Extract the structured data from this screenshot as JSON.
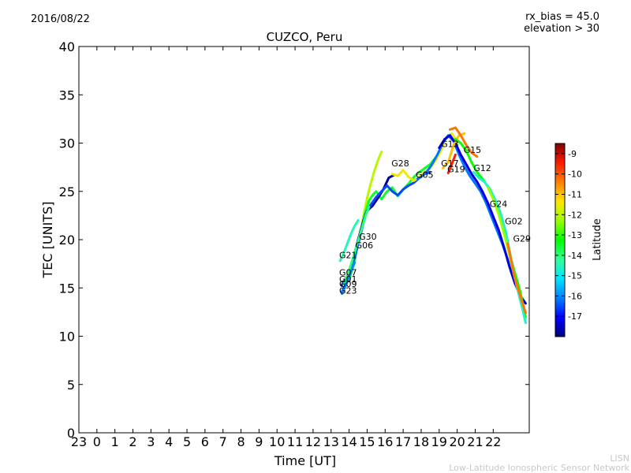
{
  "header": {
    "date": "2016/08/22",
    "rx_bias": "rx_bias = 45.0",
    "elevation": "elevation > 30"
  },
  "footer": {
    "line1": "LISN",
    "line2": "Low-Latitude Ionospheric Sensor Network"
  },
  "chart_data": {
    "type": "line",
    "title": "CUZCO, Peru",
    "xlabel": "Time [UT]",
    "ylabel": "TEC [UNITS]",
    "xticks": [
      "23",
      "0",
      "1",
      "2",
      "3",
      "4",
      "5",
      "6",
      "7",
      "8",
      "9",
      "10",
      "11",
      "12",
      "13",
      "14",
      "15",
      "16",
      "17",
      "18",
      "19",
      "20",
      "21",
      "22"
    ],
    "xlim": [
      -1,
      24
    ],
    "yticks": [
      0,
      5,
      10,
      15,
      20,
      25,
      30,
      35,
      40
    ],
    "ylim": [
      0,
      40
    ],
    "colorbar": {
      "label": "Latitude",
      "ticks": [
        -9,
        -10,
        -11,
        -12,
        -13,
        -14,
        -15,
        -16,
        -17
      ],
      "range": [
        -18,
        -8.5
      ],
      "colors": [
        "#00007f",
        "#0000ff",
        "#0080ff",
        "#00e5ff",
        "#33ff99",
        "#00ff00",
        "#99ff00",
        "#ffe500",
        "#ff8000",
        "#ff1a00",
        "#800000"
      ]
    },
    "series": [
      {
        "name": "G21",
        "lat": -14.5,
        "x": [
          13.5,
          13.7,
          13.9,
          14.1,
          14.3,
          14.5
        ],
        "y": [
          17.8,
          18.6,
          19.6,
          20.6,
          21.4,
          22.0
        ]
      },
      {
        "name": "G30",
        "lat": -12.0,
        "x": [
          14.6,
          14.8,
          15.0,
          15.2,
          15.4,
          15.6,
          15.8
        ],
        "y": [
          20.2,
          22.5,
          24.3,
          25.8,
          27.1,
          28.2,
          29.1
        ]
      },
      {
        "name": "G06",
        "lat": -13.5,
        "x": [
          14.0,
          14.3,
          14.6,
          14.9,
          15.1,
          15.3,
          15.5,
          15.8,
          16.1,
          16.4,
          16.7,
          17.0,
          17.3,
          17.6,
          17.9,
          18.2,
          18.5,
          18.8
        ],
        "y": [
          15.8,
          17.8,
          20.6,
          22.8,
          24.0,
          24.6,
          25.0,
          24.2,
          25.0,
          25.4,
          24.5,
          25.2,
          25.8,
          26.5,
          27.0,
          27.4,
          27.8,
          28.5
        ]
      },
      {
        "name": "G07",
        "lat": -17.8,
        "x": [
          13.6,
          13.9,
          14.2,
          14.5,
          14.8,
          15.0,
          15.3,
          15.6,
          15.9,
          16.2,
          16.5
        ],
        "y": [
          15.3,
          16.2,
          17.8,
          20.0,
          22.0,
          23.0,
          23.5,
          24.3,
          25.2,
          26.4,
          26.7
        ]
      },
      {
        "name": "G01",
        "lat": -16.5,
        "x": [
          13.6,
          13.8,
          14.1,
          14.4,
          14.7,
          14.9,
          15.2,
          15.5,
          15.8,
          16.1,
          16.4,
          16.7,
          17.0,
          17.3,
          17.6,
          17.9,
          18.2,
          18.5
        ],
        "y": [
          14.6,
          15.3,
          16.8,
          18.8,
          21.0,
          22.6,
          23.6,
          24.4,
          25.0,
          25.6,
          25.0,
          24.6,
          25.2,
          25.6,
          25.9,
          26.4,
          26.8,
          27.0
        ]
      },
      {
        "name": "G09",
        "lat": -14.0,
        "x": [
          13.7,
          14.0,
          14.3,
          14.6,
          14.9,
          15.1
        ],
        "y": [
          15.4,
          16.8,
          18.6,
          20.5,
          22.4,
          23.4
        ]
      },
      {
        "name": "G23",
        "lat": -16.0,
        "x": [
          13.6,
          13.8,
          14.0,
          14.3
        ],
        "y": [
          14.4,
          15.2,
          16.2,
          17.6
        ]
      },
      {
        "name": "G28",
        "lat": -11.5,
        "x": [
          16.4,
          16.7,
          17.0,
          17.3,
          17.6,
          17.9,
          18.2,
          18.5,
          18.8,
          19.1,
          19.4,
          19.7,
          20.0
        ],
        "y": [
          26.8,
          26.6,
          27.2,
          26.5,
          26.1,
          26.5,
          27.0,
          27.4,
          28.2,
          29.2,
          30.6,
          31.0,
          30.2
        ]
      },
      {
        "name": "G05",
        "lat": -16.2,
        "x": [
          17.8,
          18.0,
          18.3,
          18.6,
          18.9,
          19.2,
          19.5,
          19.8,
          20.1,
          20.4,
          20.7,
          21.0,
          21.3,
          21.6,
          21.9,
          22.2,
          22.5,
          22.8,
          23.0
        ],
        "y": [
          26.3,
          26.5,
          27.0,
          27.8,
          28.8,
          30.0,
          30.8,
          30.2,
          28.8,
          27.6,
          26.6,
          25.8,
          25.0,
          23.8,
          22.4,
          21.0,
          19.6,
          18.0,
          16.6
        ]
      },
      {
        "name": "G13",
        "lat": -17.3,
        "x": [
          19.0,
          19.3,
          19.6,
          19.9,
          20.2,
          20.5,
          20.8,
          21.1,
          21.4,
          21.7,
          22.0,
          22.3,
          22.6,
          22.9,
          23.2,
          23.5,
          23.8
        ],
        "y": [
          29.5,
          30.4,
          30.8,
          30.0,
          28.8,
          27.8,
          26.8,
          26.0,
          25.0,
          23.8,
          22.4,
          21.0,
          19.2,
          17.2,
          15.5,
          14.2,
          13.4
        ]
      },
      {
        "name": "G17",
        "lat": -11.0,
        "x": [
          19.2,
          19.5,
          19.8,
          20.1,
          20.4
        ],
        "y": [
          27.4,
          28.0,
          29.8,
          30.8,
          31.0
        ]
      },
      {
        "name": "G19",
        "lat": -9.5,
        "x": [
          19.5,
          19.7,
          19.9
        ],
        "y": [
          26.9,
          27.8,
          28.8
        ]
      },
      {
        "name": "G15",
        "lat": -10.3,
        "x": [
          19.6,
          19.9,
          20.2,
          20.5,
          20.8,
          21.1
        ],
        "y": [
          31.4,
          31.6,
          30.8,
          29.8,
          29.0,
          28.6
        ]
      },
      {
        "name": "G12",
        "lat": -13.2,
        "x": [
          19.9,
          20.2,
          20.5,
          20.8,
          21.1,
          21.4,
          21.7,
          22.0,
          22.3,
          22.6,
          22.9,
          23.2,
          23.5,
          23.8
        ],
        "y": [
          30.4,
          30.0,
          29.2,
          28.0,
          27.0,
          26.3,
          25.5,
          24.4,
          22.8,
          20.8,
          18.6,
          16.6,
          14.6,
          12.0
        ]
      },
      {
        "name": "G24",
        "lat": -14.6,
        "x": [
          20.9,
          21.2,
          21.5,
          21.8,
          22.1,
          22.4,
          22.7,
          23.0,
          23.3,
          23.6,
          23.8
        ],
        "y": [
          27.0,
          26.4,
          26.0,
          25.3,
          24.2,
          22.8,
          20.8,
          18.0,
          15.2,
          13.0,
          11.4
        ]
      },
      {
        "name": "G02",
        "lat": -12.2,
        "x": [
          21.7,
          22.0,
          22.3,
          22.6,
          22.9,
          23.2
        ],
        "y": [
          25.4,
          24.2,
          22.6,
          20.6,
          18.4,
          16.0
        ]
      },
      {
        "name": "G29",
        "lat": -10.3,
        "x": [
          22.8,
          23.0,
          23.2,
          23.5,
          23.8
        ],
        "y": [
          19.6,
          17.8,
          16.0,
          14.2,
          12.4
        ]
      }
    ],
    "labels": [
      {
        "text": "G21",
        "x": 13.45,
        "y": 18.1
      },
      {
        "text": "G30",
        "x": 14.55,
        "y": 20.0
      },
      {
        "text": "G06",
        "x": 14.35,
        "y": 19.1
      },
      {
        "text": "G07",
        "x": 13.45,
        "y": 16.3
      },
      {
        "text": "G01",
        "x": 13.45,
        "y": 15.6
      },
      {
        "text": "G09",
        "x": 13.45,
        "y": 15.1
      },
      {
        "text": "G23",
        "x": 13.45,
        "y": 14.4
      },
      {
        "text": "G28",
        "x": 16.35,
        "y": 27.6
      },
      {
        "text": "G05",
        "x": 17.7,
        "y": 26.4
      },
      {
        "text": "G13",
        "x": 19.1,
        "y": 29.6
      },
      {
        "text": "G15",
        "x": 20.35,
        "y": 29.0
      },
      {
        "text": "G17",
        "x": 19.1,
        "y": 27.6
      },
      {
        "text": "G19",
        "x": 19.45,
        "y": 27.0
      },
      {
        "text": "G12",
        "x": 20.9,
        "y": 27.1
      },
      {
        "text": "G24",
        "x": 21.8,
        "y": 23.4
      },
      {
        "text": "G02",
        "x": 22.65,
        "y": 21.6
      },
      {
        "text": "G29",
        "x": 23.1,
        "y": 19.8
      }
    ]
  }
}
